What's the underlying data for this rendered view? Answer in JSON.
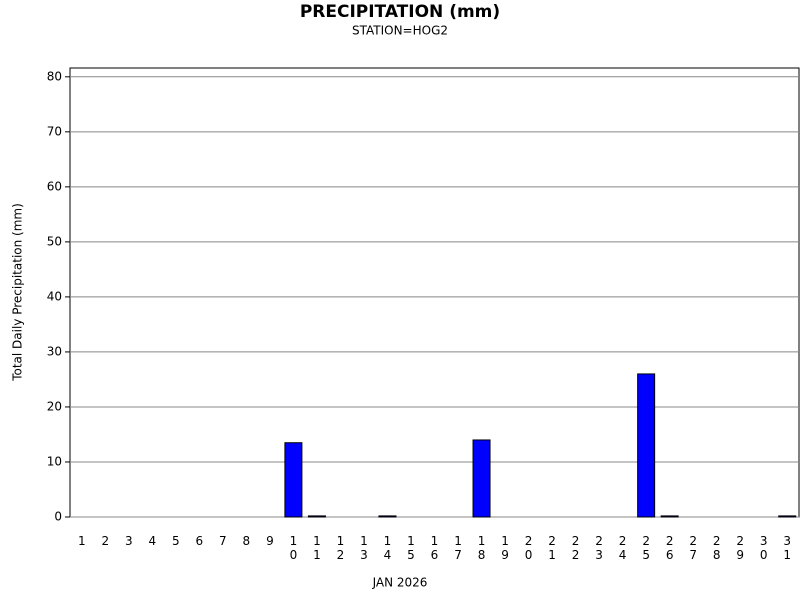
{
  "chart_data": {
    "type": "bar",
    "title": "PRECIPITATION (mm)",
    "subtitle": "STATION=HOG2",
    "x_label": "JAN 2026",
    "y_label": "Total Daily Precipitation (mm)",
    "categories": [
      "1",
      "2",
      "3",
      "4",
      "5",
      "6",
      "7",
      "8",
      "9",
      "10",
      "11",
      "12",
      "13",
      "14",
      "15",
      "16",
      "17",
      "18",
      "19",
      "20",
      "21",
      "22",
      "23",
      "24",
      "25",
      "26",
      "27",
      "28",
      "29",
      "30",
      "31"
    ],
    "values": [
      0,
      0,
      0,
      0,
      0,
      0,
      0,
      0,
      0,
      13.5,
      0.2,
      0,
      0,
      0.2,
      0,
      0,
      0,
      14,
      0,
      0,
      0,
      0,
      0,
      0,
      26,
      0.2,
      0,
      0,
      0,
      0,
      0.2
    ],
    "color": "#0000ff",
    "ylim": [
      0,
      81.6
    ],
    "yticks": [
      0,
      10,
      20,
      30,
      40,
      50,
      60,
      70,
      80
    ],
    "grid": true
  }
}
